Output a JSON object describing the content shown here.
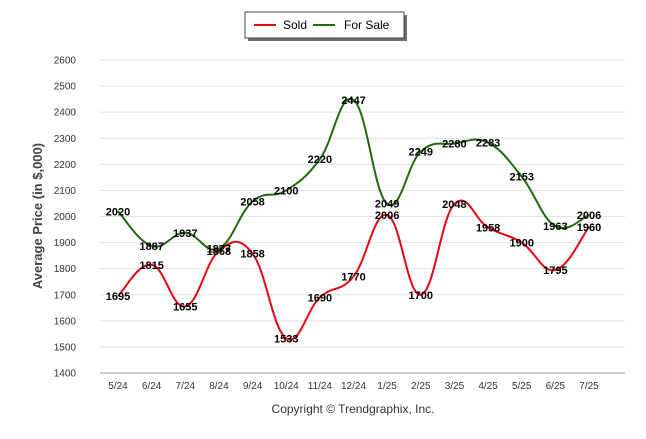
{
  "chart_data": {
    "type": "line",
    "categories": [
      "5/24",
      "6/24",
      "7/24",
      "8/24",
      "9/24",
      "10/24",
      "11/24",
      "12/24",
      "1/25",
      "2/25",
      "3/25",
      "4/25",
      "5/25",
      "6/25",
      "7/25"
    ],
    "series": [
      {
        "name": "Sold",
        "color": "#e30613",
        "values": [
          1695,
          1815,
          1655,
          1868,
          1858,
          1533,
          1690,
          1770,
          2006,
          1700,
          2048,
          1958,
          1900,
          1795,
          1960
        ]
      },
      {
        "name": "For Sale",
        "color": "#1e6b0a",
        "values": [
          2020,
          1887,
          1937,
          1877,
          2058,
          2100,
          2220,
          2447,
          2049,
          2249,
          2280,
          2283,
          2153,
          1963,
          2006
        ]
      }
    ],
    "ylabel": "Average Price (in $,000)",
    "xlabel": "",
    "ylim": [
      1400,
      2600
    ],
    "yticks": [
      1400,
      1500,
      1600,
      1700,
      1800,
      1900,
      2000,
      2100,
      2200,
      2300,
      2400,
      2500,
      2600
    ],
    "grid": true,
    "legend_position": "top-center",
    "smooth": true
  },
  "credit": "Copyright © Trendgraphix, Inc."
}
